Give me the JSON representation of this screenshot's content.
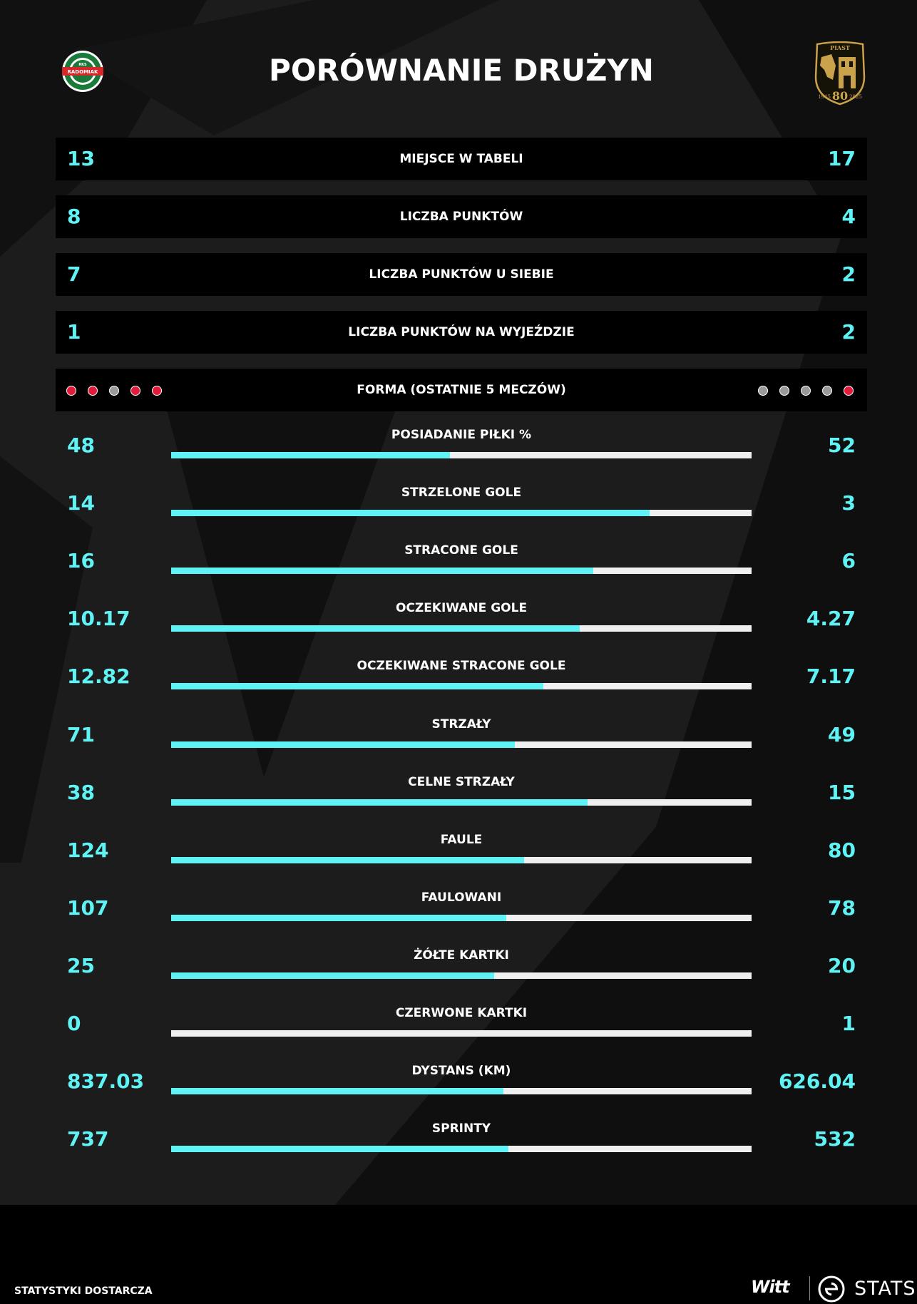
{
  "title": "PORÓWNANIE DRUŻYN",
  "home_logo": {
    "icon": "radomiak-crest-icon",
    "text_top": "RKS",
    "text_main": "RADOMIAK"
  },
  "away_logo": {
    "icon": "piast-crest-icon",
    "text_top": "PIAST",
    "text_years_left": "1945",
    "text_anniv": "80",
    "text_years_right": "2025"
  },
  "colors": {
    "accent": "#5ff3f6",
    "track": "#efefef",
    "loss": "#e31b3b",
    "draw": "#9a9a9a",
    "background": "#1c1c1c"
  },
  "standings": [
    {
      "label": "MIEJSCE W TABELI",
      "home": "13",
      "away": "17"
    },
    {
      "label": "LICZBA PUNKTÓW",
      "home": "8",
      "away": "4"
    },
    {
      "label": "LICZBA PUNKTÓW U SIEBIE",
      "home": "7",
      "away": "2"
    },
    {
      "label": "LICZBA PUNKTÓW NA WYJEŹDZIE",
      "home": "1",
      "away": "2"
    }
  ],
  "form": {
    "label": "FORMA (OSTATNIE 5 MECZÓW)",
    "home": [
      "loss",
      "loss",
      "draw",
      "loss",
      "loss"
    ],
    "away": [
      "draw",
      "draw",
      "draw",
      "draw",
      "loss"
    ]
  },
  "stats": [
    {
      "label": "POSIADANIE PIŁKI %",
      "home": "48",
      "away": "52",
      "home_share": 0.48
    },
    {
      "label": "STRZELONE GOLE",
      "home": "14",
      "away": "3",
      "home_share": 0.824
    },
    {
      "label": "STRACONE GOLE",
      "home": "16",
      "away": "6",
      "home_share": 0.727
    },
    {
      "label": "OCZEKIWANE GOLE",
      "home": "10.17",
      "away": "4.27",
      "home_share": 0.704
    },
    {
      "label": "OCZEKIWANE STRACONE GOLE",
      "home": "12.82",
      "away": "7.17",
      "home_share": 0.641
    },
    {
      "label": "STRZAŁY",
      "home": "71",
      "away": "49",
      "home_share": 0.592
    },
    {
      "label": "CELNE STRZAŁY",
      "home": "38",
      "away": "15",
      "home_share": 0.717
    },
    {
      "label": "FAULE",
      "home": "124",
      "away": "80",
      "home_share": 0.608
    },
    {
      "label": "FAULOWANI",
      "home": "107",
      "away": "78",
      "home_share": 0.578
    },
    {
      "label": "ŻÓŁTE KARTKI",
      "home": "25",
      "away": "20",
      "home_share": 0.556
    },
    {
      "label": "CZERWONE KARTKI",
      "home": "0",
      "away": "1",
      "home_share": 0.0
    },
    {
      "label": "DYSTANS (KM)",
      "home": "837.03",
      "away": "626.04",
      "home_share": 0.572
    },
    {
      "label": "SPRINTY",
      "home": "737",
      "away": "532",
      "home_share": 0.581
    }
  ],
  "footer": {
    "provided_by": "STATYSTYKI DOSTARCZA",
    "brand_witt": "Witt",
    "brand_stats": "STATS",
    "brand_icon": "ekstraklasa-logo-icon"
  }
}
